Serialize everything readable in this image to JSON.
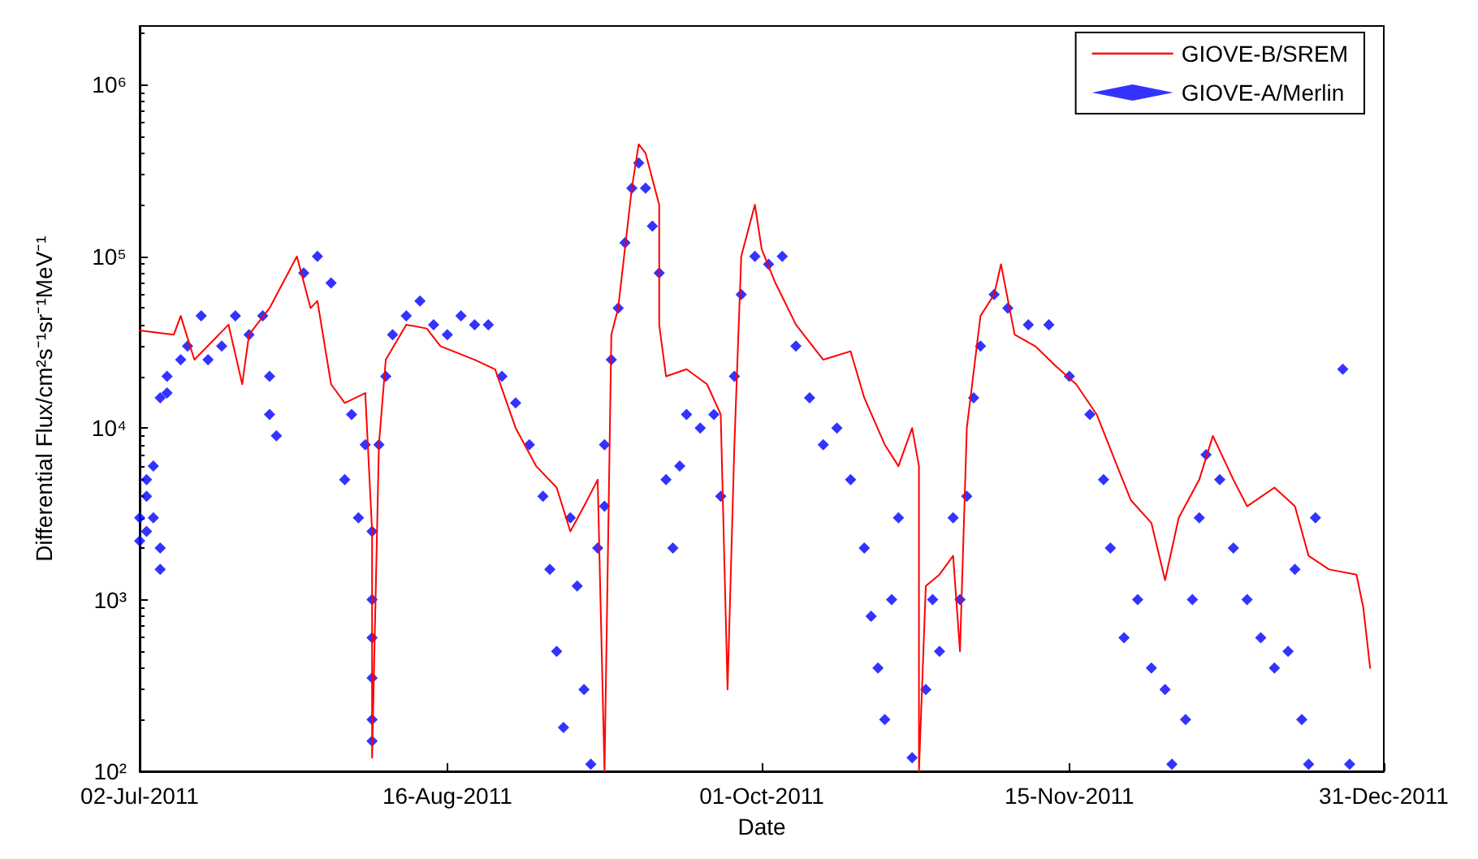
{
  "chart_data": {
    "type": "line",
    "xlabel": "Date",
    "ylabel": "Differential Flux/cm²s⁻¹sr⁻¹MeV⁻¹",
    "log": "y",
    "grid": false,
    "legend": "top right",
    "xlim": [
      "2011-07-02",
      "2011-12-31"
    ],
    "xticks": [
      {
        "value": "2011-07-02",
        "label": "02-Jul-2011"
      },
      {
        "value": "2011-08-16",
        "label": "16-Aug-2011"
      },
      {
        "value": "2011-10-01",
        "label": "01-Oct-2011"
      },
      {
        "value": "2011-11-15",
        "label": "15-Nov-2011"
      },
      {
        "value": "2011-12-31",
        "label": "31-Dec-2011"
      }
    ],
    "ylim": [
      100,
      2200000
    ],
    "yticks": [
      {
        "value": 100,
        "label": "10²"
      },
      {
        "value": 1000,
        "label": "10³"
      },
      {
        "value": 10000,
        "label": "10⁴"
      },
      {
        "value": 100000,
        "label": "10⁵"
      },
      {
        "value": 1000000,
        "label": "10⁶"
      }
    ],
    "series": [
      {
        "name": "GIOVE-B/SREM",
        "color": "#ff0000",
        "line_style": "solid",
        "marker": "none",
        "x": [
          "2011-07-02",
          "2011-07-07",
          "2011-07-08",
          "2011-07-10",
          "2011-07-15",
          "2011-07-17",
          "2011-07-18",
          "2011-07-21",
          "2011-07-25",
          "2011-07-27",
          "2011-07-28",
          "2011-07-30",
          "2011-08-01",
          "2011-08-04",
          "2011-08-05",
          "2011-08-05",
          "2011-08-06",
          "2011-08-07",
          "2011-08-10",
          "2011-08-13",
          "2011-08-15",
          "2011-08-20",
          "2011-08-23",
          "2011-08-26",
          "2011-08-29",
          "2011-09-01",
          "2011-09-03",
          "2011-09-05",
          "2011-09-07",
          "2011-09-08",
          "2011-09-09",
          "2011-09-10",
          "2011-09-12",
          "2011-09-13",
          "2011-09-14",
          "2011-09-16",
          "2011-09-16",
          "2011-09-17",
          "2011-09-20",
          "2011-09-23",
          "2011-09-25",
          "2011-09-26",
          "2011-09-27",
          "2011-09-28",
          "2011-09-30",
          "2011-10-01",
          "2011-10-03",
          "2011-10-06",
          "2011-10-10",
          "2011-10-14",
          "2011-10-16",
          "2011-10-19",
          "2011-10-21",
          "2011-10-23",
          "2011-10-24",
          "2011-10-24",
          "2011-10-25",
          "2011-10-27",
          "2011-10-29",
          "2011-10-30",
          "2011-10-31",
          "2011-11-02",
          "2011-11-04",
          "2011-11-05",
          "2011-11-07",
          "2011-11-10",
          "2011-11-13",
          "2011-11-16",
          "2011-11-19",
          "2011-11-22",
          "2011-11-24",
          "2011-11-27",
          "2011-11-29",
          "2011-12-01",
          "2011-12-04",
          "2011-12-06",
          "2011-12-09",
          "2011-12-11",
          "2011-12-15",
          "2011-12-18",
          "2011-12-20",
          "2011-12-23",
          "2011-12-27",
          "2011-12-28",
          "2011-12-29"
        ],
        "values": [
          37000,
          35000,
          45000,
          25000,
          40000,
          18000,
          35000,
          50000,
          100000,
          50000,
          55000,
          18000,
          14000,
          16000,
          2500,
          120,
          8000,
          25000,
          40000,
          38000,
          30000,
          25000,
          22000,
          10000,
          6000,
          4500,
          2500,
          3500,
          5000,
          100,
          35000,
          50000,
          250000,
          450000,
          400000,
          200000,
          40000,
          20000,
          22000,
          18000,
          12000,
          300,
          8000,
          100000,
          200000,
          110000,
          70000,
          40000,
          25000,
          28000,
          15000,
          8000,
          6000,
          10000,
          6000,
          100,
          1200,
          1400,
          1800,
          500,
          10000,
          45000,
          60000,
          90000,
          35000,
          30000,
          23000,
          18000,
          12000,
          6000,
          3800,
          2800,
          1300,
          3000,
          5000,
          9000,
          5000,
          3500,
          4500,
          3500,
          1800,
          1500,
          1400,
          900,
          400
        ]
      },
      {
        "name": "GIOVE-A/Merlin",
        "type": "scatter",
        "color": "#0000ff",
        "marker": "diamond",
        "x": [
          "2011-07-02",
          "2011-07-02",
          "2011-07-03",
          "2011-07-03",
          "2011-07-03",
          "2011-07-04",
          "2011-07-04",
          "2011-07-05",
          "2011-07-05",
          "2011-07-05",
          "2011-07-06",
          "2011-07-06",
          "2011-07-08",
          "2011-07-09",
          "2011-07-11",
          "2011-07-12",
          "2011-07-14",
          "2011-07-16",
          "2011-07-18",
          "2011-07-20",
          "2011-07-21",
          "2011-07-21",
          "2011-07-22",
          "2011-07-26",
          "2011-07-28",
          "2011-07-30",
          "2011-08-01",
          "2011-08-02",
          "2011-08-03",
          "2011-08-04",
          "2011-08-05",
          "2011-08-05",
          "2011-08-05",
          "2011-08-05",
          "2011-08-05",
          "2011-08-05",
          "2011-08-06",
          "2011-08-07",
          "2011-08-08",
          "2011-08-10",
          "2011-08-12",
          "2011-08-14",
          "2011-08-16",
          "2011-08-18",
          "2011-08-20",
          "2011-08-22",
          "2011-08-24",
          "2011-08-26",
          "2011-08-28",
          "2011-08-30",
          "2011-08-31",
          "2011-09-01",
          "2011-09-02",
          "2011-09-03",
          "2011-09-04",
          "2011-09-05",
          "2011-09-06",
          "2011-09-07",
          "2011-09-08",
          "2011-09-08",
          "2011-09-09",
          "2011-09-10",
          "2011-09-11",
          "2011-09-12",
          "2011-09-13",
          "2011-09-14",
          "2011-09-15",
          "2011-09-16",
          "2011-09-17",
          "2011-09-18",
          "2011-09-19",
          "2011-09-20",
          "2011-09-22",
          "2011-09-24",
          "2011-09-25",
          "2011-09-27",
          "2011-09-28",
          "2011-09-30",
          "2011-10-02",
          "2011-10-04",
          "2011-10-06",
          "2011-10-08",
          "2011-10-10",
          "2011-10-12",
          "2011-10-14",
          "2011-10-16",
          "2011-10-17",
          "2011-10-18",
          "2011-10-19",
          "2011-10-20",
          "2011-10-21",
          "2011-10-23",
          "2011-10-25",
          "2011-10-26",
          "2011-10-27",
          "2011-10-29",
          "2011-10-30",
          "2011-10-31",
          "2011-11-01",
          "2011-11-02",
          "2011-11-04",
          "2011-11-06",
          "2011-11-09",
          "2011-11-12",
          "2011-11-15",
          "2011-11-18",
          "2011-11-20",
          "2011-11-21",
          "2011-11-23",
          "2011-11-25",
          "2011-11-27",
          "2011-11-29",
          "2011-11-30",
          "2011-12-02",
          "2011-12-03",
          "2011-12-04",
          "2011-12-05",
          "2011-12-07",
          "2011-12-09",
          "2011-12-11",
          "2011-12-13",
          "2011-12-15",
          "2011-12-17",
          "2011-12-18",
          "2011-12-19",
          "2011-12-20",
          "2011-12-21",
          "2011-12-25",
          "2011-12-26"
        ],
        "values": [
          3000,
          2200,
          4000,
          5000,
          2500,
          6000,
          3000,
          1500,
          2000,
          15000,
          20000,
          16000,
          25000,
          30000,
          45000,
          25000,
          30000,
          45000,
          35000,
          45000,
          20000,
          12000,
          9000,
          80000,
          100000,
          70000,
          5000,
          12000,
          3000,
          8000,
          2500,
          1000,
          600,
          350,
          200,
          150,
          8000,
          20000,
          35000,
          45000,
          55000,
          40000,
          35000,
          45000,
          40000,
          40000,
          20000,
          14000,
          8000,
          4000,
          1500,
          500,
          180,
          3000,
          1200,
          300,
          110,
          2000,
          8000,
          3500,
          25000,
          50000,
          120000,
          250000,
          350000,
          250000,
          150000,
          80000,
          5000,
          2000,
          6000,
          12000,
          10000,
          12000,
          4000,
          20000,
          60000,
          100000,
          90000,
          100000,
          30000,
          15000,
          8000,
          10000,
          5000,
          2000,
          800,
          400,
          200,
          1000,
          3000,
          120,
          300,
          1000,
          500,
          3000,
          1000,
          4000,
          15000,
          30000,
          60000,
          50000,
          40000,
          40000,
          20000,
          12000,
          5000,
          2000,
          600,
          1000,
          400,
          300,
          110,
          200,
          1000,
          3000,
          7000,
          5000,
          2000,
          1000,
          600,
          400,
          500,
          1500,
          200,
          110,
          3000,
          22000,
          110
        ]
      }
    ]
  }
}
